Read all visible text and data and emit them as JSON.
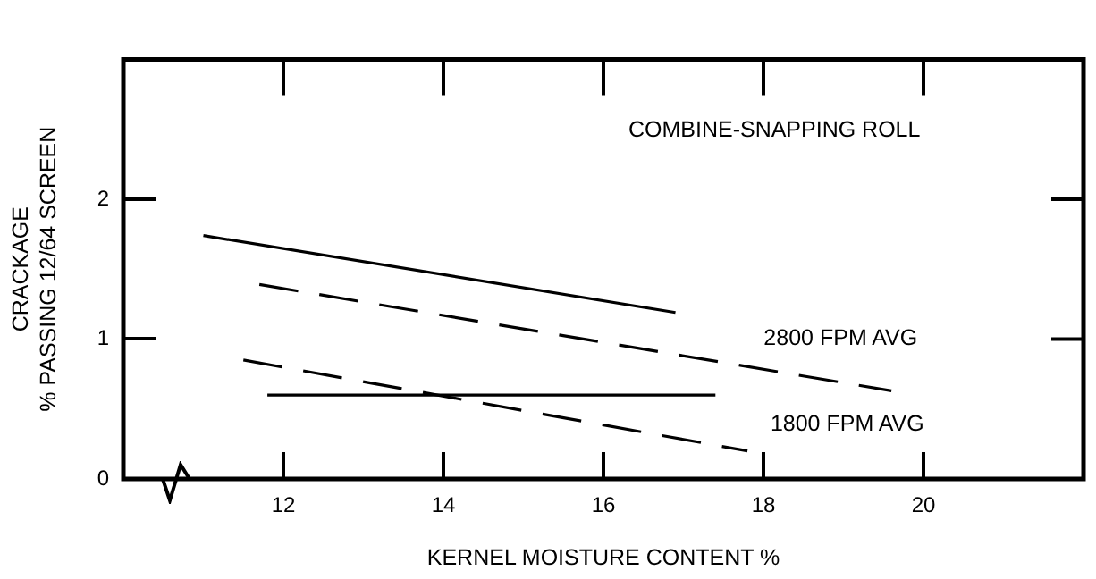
{
  "chart_data": {
    "type": "line",
    "xlabel": "KERNEL MOISTURE CONTENT %",
    "ylabel": "CRACKAGE\n% PASSING 12/64 SCREEN",
    "xlim": [
      10,
      22
    ],
    "xticks": [
      12,
      14,
      16,
      18,
      20
    ],
    "ylim": [
      0,
      3
    ],
    "yticks": [
      0,
      1,
      2
    ],
    "series": [
      {
        "color": "#000000",
        "line_style": "solid",
        "x": [
          11.0,
          16.9
        ],
        "values": [
          1.74,
          1.19
        ]
      },
      {
        "color": "#000000",
        "line_style": "dashed",
        "x": [
          11.7,
          19.6
        ],
        "values": [
          1.39,
          0.63
        ]
      },
      {
        "color": "#000000",
        "line_style": "dashed",
        "x": [
          11.5,
          17.8
        ],
        "values": [
          0.85,
          0.2
        ]
      },
      {
        "color": "#000000",
        "line_style": "solid",
        "x": [
          11.8,
          17.4
        ],
        "values": [
          0.6,
          0.6
        ]
      }
    ],
    "annotations": [
      "COMBINE-SNAPPING ROLL",
      "2800 FPM AVG",
      "1800 FPM AVG"
    ],
    "marker": "none",
    "legend": false,
    "grid": false
  }
}
